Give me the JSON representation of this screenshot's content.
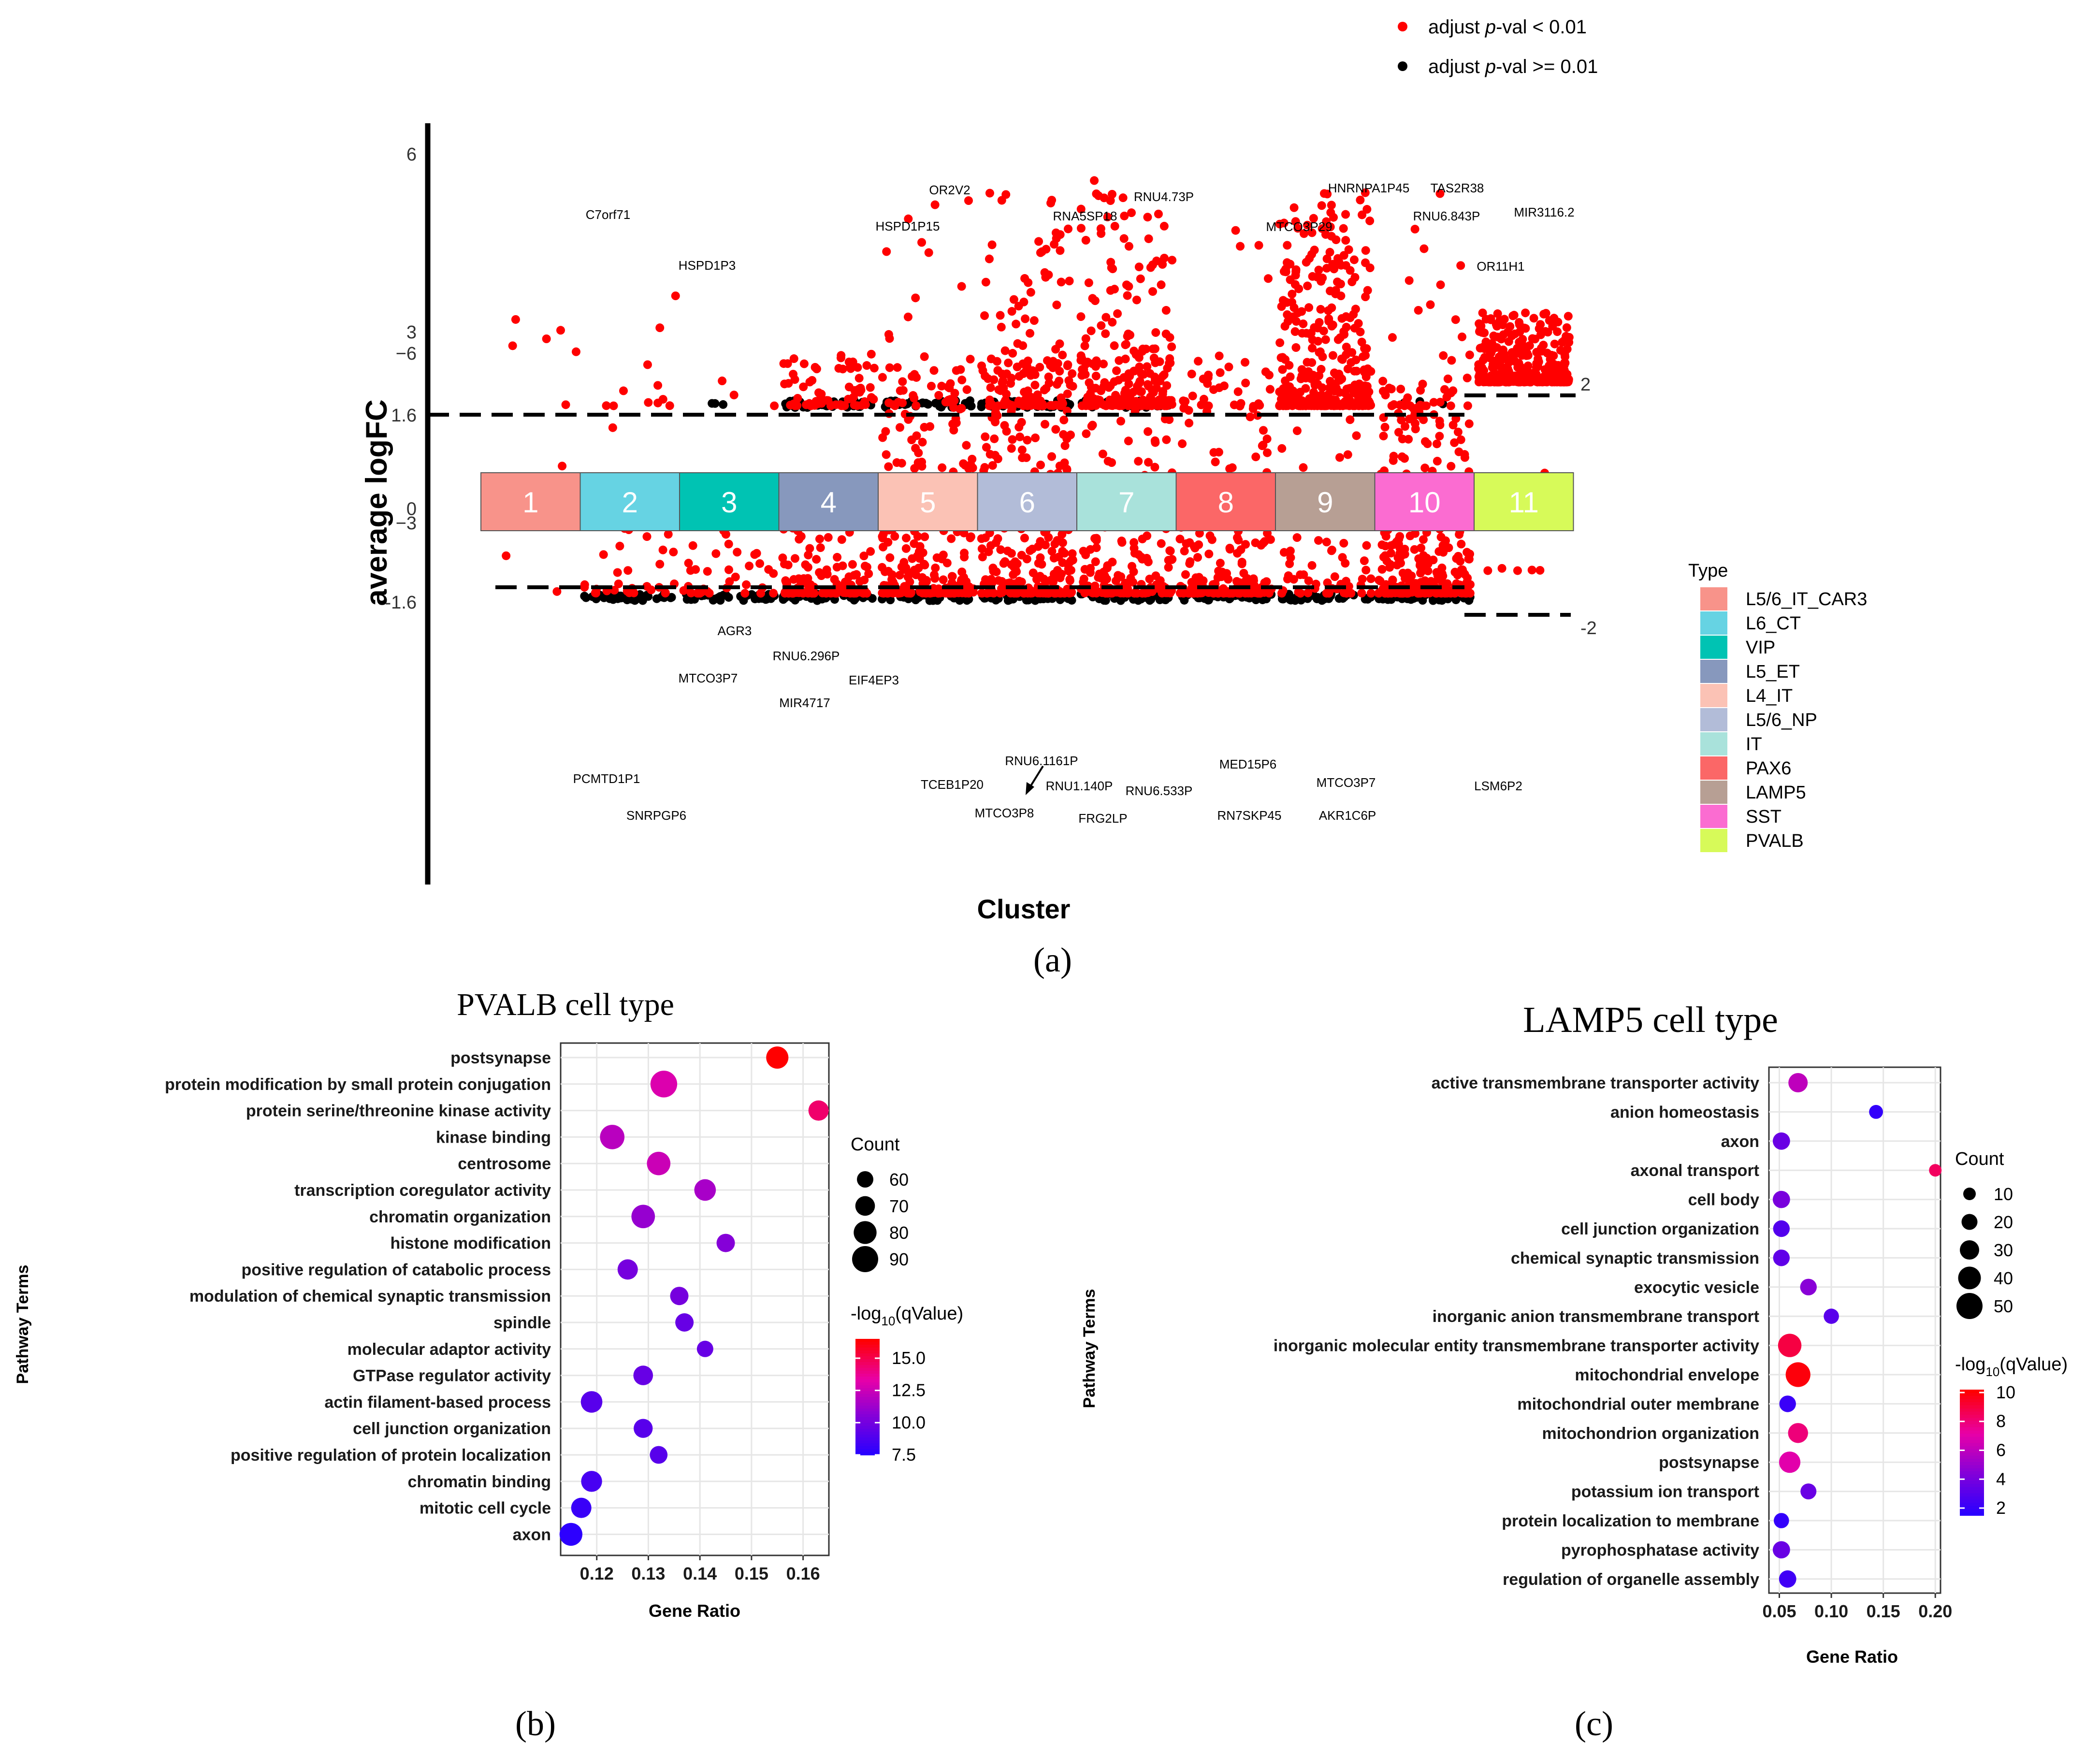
{
  "panel_a": {
    "legend_sig": [
      {
        "color": "#ff0000",
        "pre": "adjust ",
        "ital": "p",
        "post": "-val < 0.01"
      },
      {
        "color": "#000000",
        "pre": "adjust ",
        "ital": "p",
        "post": "-val >= 0.01"
      }
    ],
    "ylabel": "average logFC",
    "xlabel": "Cluster",
    "yticks": [
      {
        "value": 6,
        "label": "6"
      },
      {
        "value": 3,
        "label": "3"
      },
      {
        "value": 1.6,
        "label": "1.6"
      },
      {
        "value": 0,
        "label": "0"
      },
      {
        "value": -1.6,
        "label": "-1.6"
      },
      {
        "value": -3,
        "label": "−3"
      },
      {
        "value": -6,
        "label": "−6"
      }
    ],
    "right_labels": [
      {
        "value": 2,
        "label": "2"
      },
      {
        "value": -2,
        "label": "-2"
      }
    ],
    "type_legend_title": "Type",
    "clusters": [
      {
        "id": "1",
        "type": "L5/6_IT_CAR3",
        "color": "#f8938a"
      },
      {
        "id": "2",
        "type": "L6_CT",
        "color": "#66d3e3"
      },
      {
        "id": "3",
        "type": "VIP",
        "color": "#00c3b3"
      },
      {
        "id": "4",
        "type": "L5_ET",
        "color": "#8798bd"
      },
      {
        "id": "5",
        "type": "L4_IT",
        "color": "#fbc2b5"
      },
      {
        "id": "6",
        "type": "L5/6_NP",
        "color": "#b2bcd8"
      },
      {
        "id": "7",
        "type": "IT",
        "color": "#a9e2db"
      },
      {
        "id": "8",
        "type": "PAX6",
        "color": "#fb6767"
      },
      {
        "id": "9",
        "type": "LAMP5",
        "color": "#b79f94"
      },
      {
        "id": "10",
        "type": "SST",
        "color": "#fb6cd1"
      },
      {
        "id": "11",
        "type": "PVALB",
        "color": "#d7fa59"
      }
    ],
    "gene_labels": [
      "C7orf71",
      "HSPD1P3",
      "OR2V2",
      "HSPD1P15",
      "RNA5SP18",
      "RNU4.73P",
      "MTCO3P29",
      "HNRNPA1P45",
      "TAS2R38",
      "RNU6.843P",
      "MIR3116.2",
      "OR11H1",
      "AGR3",
      "MTCO3P7",
      "RNU6.296P",
      "EIF4EP3",
      "MIR4717",
      "RNU6.1161P",
      "TCEB1P20",
      "RNU1.140P",
      "RNU6.533P",
      "MED15P6",
      "MTCO3P7",
      "PCMTD1P1",
      "SNRPGP6",
      "MTCO3P8",
      "FRG2LP",
      "RN7SKP45",
      "AKR1C6P",
      "LSM6P2"
    ],
    "panel_label": "(a)"
  },
  "panel_b": {
    "title": "PVALB cell type",
    "panel_label": "(b)",
    "chart_data": {
      "type": "scatter",
      "title": "PVALB cell type",
      "xlabel": "Gene Ratio",
      "ylabel": "Pathway Terms",
      "xlim": [
        0.113,
        0.165
      ],
      "xticks": [
        0.12,
        0.13,
        0.14,
        0.15,
        0.16
      ],
      "xtick_labels": [
        "0.12",
        "0.13",
        "0.14",
        "0.15",
        "0.16"
      ],
      "size_legend": {
        "title": "Count",
        "values": [
          60,
          70,
          80,
          90
        ]
      },
      "color_legend": {
        "title": "-log10(qValue)",
        "range": [
          7.5,
          16.5
        ],
        "ticks": [
          7.5,
          10.0,
          12.5,
          15.0
        ],
        "tick_labels": [
          "7.5",
          "10.0",
          "12.5",
          "15.0"
        ],
        "low_color": "#2a00ff",
        "high_color": "#ff0000"
      },
      "terms": [
        "postsynapse",
        "protein modification by small protein conjugation",
        "protein serine/threonine kinase activity",
        "kinase binding",
        "centrosome",
        "transcription coregulator activity",
        "chromatin organization",
        "histone modification",
        "positive regulation of catabolic process",
        "modulation of chemical synaptic transmission",
        "spindle",
        "molecular adaptor activity",
        "GTPase regulator activity",
        "actin filament-based process",
        "cell junction organization",
        "positive regulation of protein localization",
        "chromatin binding",
        "mitotic cell cycle",
        "axon"
      ],
      "points": [
        {
          "x": 0.155,
          "count": 78,
          "q": 16.5
        },
        {
          "x": 0.133,
          "count": 92,
          "q": 13.0
        },
        {
          "x": 0.163,
          "count": 72,
          "q": 14.5
        },
        {
          "x": 0.123,
          "count": 85,
          "q": 12.0
        },
        {
          "x": 0.132,
          "count": 82,
          "q": 12.5
        },
        {
          "x": 0.141,
          "count": 76,
          "q": 11.5
        },
        {
          "x": 0.129,
          "count": 82,
          "q": 11.0
        },
        {
          "x": 0.145,
          "count": 66,
          "q": 10.5
        },
        {
          "x": 0.126,
          "count": 72,
          "q": 10.0
        },
        {
          "x": 0.136,
          "count": 66,
          "q": 10.0
        },
        {
          "x": 0.137,
          "count": 66,
          "q": 9.5
        },
        {
          "x": 0.141,
          "count": 60,
          "q": 9.5
        },
        {
          "x": 0.129,
          "count": 70,
          "q": 9.5
        },
        {
          "x": 0.119,
          "count": 76,
          "q": 9.0
        },
        {
          "x": 0.129,
          "count": 68,
          "q": 9.0
        },
        {
          "x": 0.132,
          "count": 64,
          "q": 9.0
        },
        {
          "x": 0.119,
          "count": 74,
          "q": 8.5
        },
        {
          "x": 0.117,
          "count": 72,
          "q": 8.0
        },
        {
          "x": 0.115,
          "count": 80,
          "q": 7.6
        }
      ]
    }
  },
  "panel_c": {
    "title": "LAMP5 cell type",
    "panel_label": "(c)",
    "chart_data": {
      "type": "scatter",
      "title": "LAMP5 cell type",
      "xlabel": "Gene Ratio",
      "ylabel": "Pathway Terms",
      "xlim": [
        0.04,
        0.205
      ],
      "xticks": [
        0.05,
        0.1,
        0.15,
        0.2
      ],
      "xtick_labels": [
        "0.05",
        "0.10",
        "0.15",
        "0.20"
      ],
      "size_legend": {
        "title": "Count",
        "values": [
          10,
          20,
          30,
          40,
          50
        ]
      },
      "color_legend": {
        "title": "-log10(qValue)",
        "range": [
          1.5,
          10.2
        ],
        "ticks": [
          2,
          4,
          6,
          8,
          10
        ],
        "tick_labels": [
          "2",
          "4",
          "6",
          "8",
          "10"
        ],
        "low_color": "#2a00ff",
        "high_color": "#ff0000"
      },
      "terms": [
        "active transmembrane transporter activity",
        "anion homeostasis",
        "axon",
        "axonal transport",
        "cell body",
        "cell junction organization",
        "chemical synaptic transmission",
        "exocytic vesicle",
        "inorganic anion transmembrane transport",
        "inorganic molecular entity transmembrane transporter activity",
        "mitochondrial envelope",
        "mitochondrial outer membrane",
        "mitochondrion organization",
        "postsynapse",
        "potassium ion transport",
        "protein localization to membrane",
        "pyrophosphatase activity",
        "regulation of organelle assembly"
      ],
      "points": [
        {
          "x": 0.068,
          "count": 30,
          "q": 6.0
        },
        {
          "x": 0.143,
          "count": 14,
          "q": 1.8
        },
        {
          "x": 0.052,
          "count": 24,
          "q": 3.5
        },
        {
          "x": 0.2,
          "count": 10,
          "q": 8.5
        },
        {
          "x": 0.052,
          "count": 24,
          "q": 4.0
        },
        {
          "x": 0.052,
          "count": 22,
          "q": 2.8
        },
        {
          "x": 0.052,
          "count": 22,
          "q": 3.2
        },
        {
          "x": 0.078,
          "count": 22,
          "q": 4.5
        },
        {
          "x": 0.1,
          "count": 18,
          "q": 3.0
        },
        {
          "x": 0.06,
          "count": 42,
          "q": 9.0
        },
        {
          "x": 0.068,
          "count": 46,
          "q": 10.0
        },
        {
          "x": 0.058,
          "count": 22,
          "q": 2.0
        },
        {
          "x": 0.068,
          "count": 32,
          "q": 8.0
        },
        {
          "x": 0.06,
          "count": 36,
          "q": 7.0
        },
        {
          "x": 0.078,
          "count": 20,
          "q": 3.5
        },
        {
          "x": 0.052,
          "count": 18,
          "q": 1.8
        },
        {
          "x": 0.052,
          "count": 24,
          "q": 3.5
        },
        {
          "x": 0.058,
          "count": 24,
          "q": 2.2
        }
      ]
    }
  }
}
